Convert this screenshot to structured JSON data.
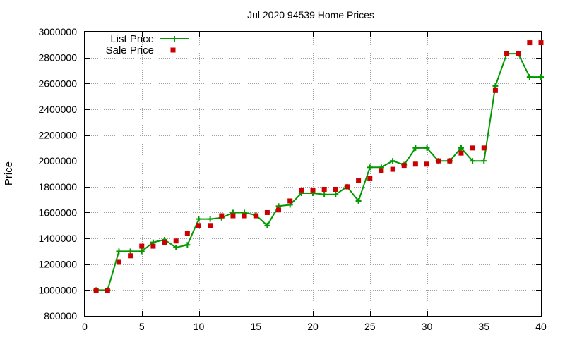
{
  "chart_data": {
    "type": "line",
    "title": "Jul 2020 94539 Home Prices",
    "xlabel": "",
    "ylabel": "Price",
    "xlim": [
      0,
      40
    ],
    "ylim": [
      800000,
      3000000
    ],
    "xticks": [
      "0",
      "5",
      "10",
      "15",
      "20",
      "25",
      "30",
      "35",
      "40"
    ],
    "yticks": [
      "800000",
      "1000000",
      "1200000",
      "1400000",
      "1600000",
      "1800000",
      "2000000",
      "2200000",
      "2400000",
      "2600000",
      "2800000",
      "3000000"
    ],
    "grid": true,
    "legend_position": "top-left",
    "series": [
      {
        "name": "List Price",
        "style": "line-plus",
        "color": "#009900",
        "x": [
          1,
          2,
          3,
          4,
          5,
          6,
          7,
          8,
          9,
          10,
          11,
          12,
          13,
          14,
          15,
          16,
          17,
          18,
          19,
          20,
          21,
          22,
          23,
          24,
          25,
          26,
          27,
          28,
          29,
          30,
          31,
          32,
          33,
          34,
          35,
          36,
          37,
          38,
          39,
          40
        ],
        "y": [
          1000000,
          1000000,
          1300000,
          1300000,
          1300000,
          1370000,
          1390000,
          1330000,
          1350000,
          1550000,
          1550000,
          1560000,
          1600000,
          1600000,
          1580000,
          1500000,
          1650000,
          1660000,
          1750000,
          1750000,
          1740000,
          1740000,
          1800000,
          1690000,
          1950000,
          1950000,
          2000000,
          1970000,
          2100000,
          2100000,
          2000000,
          2000000,
          2100000,
          2000000,
          2000000,
          2580000,
          2830000,
          2830000,
          2650000,
          2650000
        ]
      },
      {
        "name": "Sale Price",
        "style": "square-points",
        "color": "#cc0000",
        "x": [
          1,
          2,
          3,
          4,
          5,
          6,
          7,
          8,
          9,
          10,
          11,
          12,
          13,
          14,
          15,
          16,
          17,
          18,
          19,
          20,
          21,
          22,
          23,
          24,
          25,
          26,
          27,
          28,
          29,
          30,
          31,
          32,
          33,
          34,
          35,
          36,
          37,
          38,
          39,
          40
        ],
        "y": [
          995000,
          995000,
          1215000,
          1265000,
          1340000,
          1340000,
          1365000,
          1380000,
          1440000,
          1500000,
          1500000,
          1575000,
          1575000,
          1575000,
          1575000,
          1600000,
          1620000,
          1690000,
          1775000,
          1775000,
          1780000,
          1780000,
          1800000,
          1850000,
          1865000,
          1925000,
          1935000,
          1965000,
          1975000,
          1975000,
          2000000,
          2000000,
          2060000,
          2100000,
          2100000,
          2545000,
          2830000,
          2830000,
          2915000,
          2915000
        ]
      }
    ]
  }
}
